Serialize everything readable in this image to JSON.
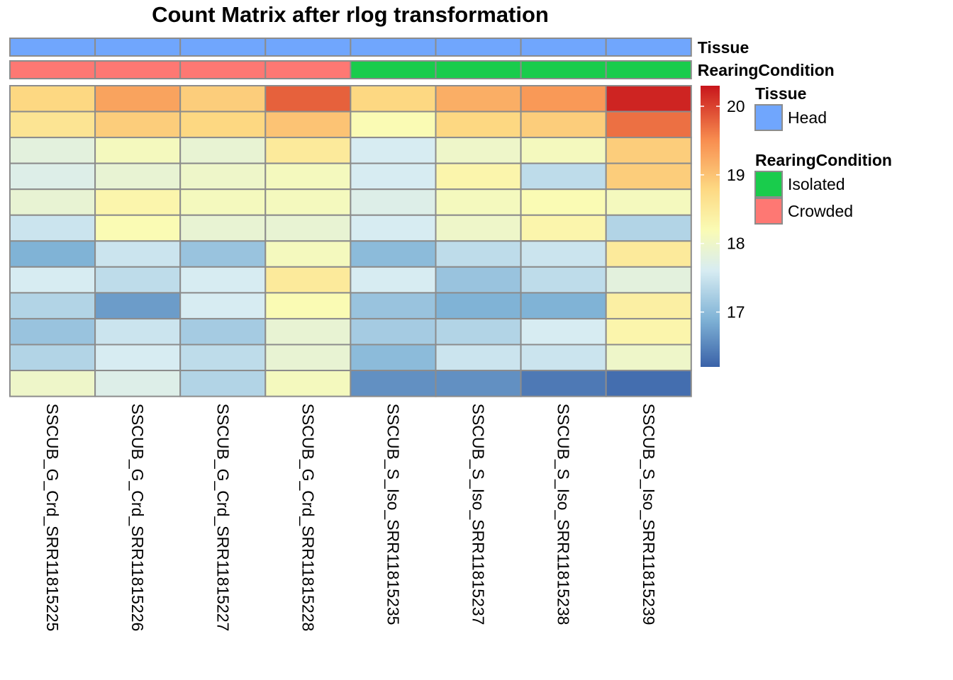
{
  "chart_data": {
    "type": "heatmap",
    "title": "Count Matrix after rlog transformation",
    "columns": [
      "SSCUB_G_Crd_SRR11815225",
      "SSCUB_G_Crd_SRR11815226",
      "SSCUB_G_Crd_SRR11815227",
      "SSCUB_G_Crd_SRR11815228",
      "SSCUB_S_Iso_SRR11815235",
      "SSCUB_S_Iso_SRR11815237",
      "SSCUB_S_Iso_SRR11815238",
      "SSCUB_S_Iso_SRR11815239"
    ],
    "values": [
      [
        18.8,
        19.3,
        18.9,
        19.8,
        18.8,
        19.2,
        19.4,
        20.2
      ],
      [
        18.6,
        18.9,
        18.8,
        19.0,
        18.2,
        18.8,
        18.9,
        19.7
      ],
      [
        17.8,
        18.1,
        17.9,
        18.5,
        17.6,
        18.0,
        18.1,
        18.9
      ],
      [
        17.7,
        17.9,
        18.0,
        18.1,
        17.6,
        18.3,
        17.4,
        18.9
      ],
      [
        17.9,
        18.3,
        18.1,
        18.1,
        17.7,
        18.1,
        18.2,
        18.1
      ],
      [
        17.5,
        18.2,
        17.9,
        17.9,
        17.6,
        18.0,
        18.3,
        17.3
      ],
      [
        16.9,
        17.5,
        17.1,
        18.1,
        17.0,
        17.4,
        17.5,
        18.5
      ],
      [
        17.6,
        17.4,
        17.6,
        18.5,
        17.6,
        17.1,
        17.4,
        17.8
      ],
      [
        17.3,
        16.7,
        17.6,
        18.2,
        17.1,
        16.9,
        16.9,
        18.4
      ],
      [
        17.1,
        17.5,
        17.2,
        17.9,
        17.2,
        17.3,
        17.6,
        18.3
      ],
      [
        17.3,
        17.6,
        17.4,
        17.9,
        17.0,
        17.5,
        17.5,
        18.0
      ],
      [
        18.0,
        17.7,
        17.3,
        18.1,
        16.6,
        16.6,
        16.4,
        16.3
      ]
    ],
    "color_scale": {
      "min": 16.2,
      "max": 20.3,
      "ticks": [
        17,
        18,
        19,
        20
      ],
      "stops": [
        {
          "value": 16.2,
          "color": "#3a62a8"
        },
        {
          "value": 16.9,
          "color": "#80b3d6"
        },
        {
          "value": 17.6,
          "color": "#d7ecf2"
        },
        {
          "value": 18.2,
          "color": "#fafbb4"
        },
        {
          "value": 18.8,
          "color": "#fdd882"
        },
        {
          "value": 19.5,
          "color": "#f88e50"
        },
        {
          "value": 20.3,
          "color": "#c8151b"
        }
      ]
    },
    "annotations": [
      {
        "name": "Tissue",
        "values": [
          "Head",
          "Head",
          "Head",
          "Head",
          "Head",
          "Head",
          "Head",
          "Head"
        ],
        "levels": [
          {
            "label": "Head",
            "color": "#70a6fd"
          }
        ]
      },
      {
        "name": "RearingCondition",
        "values": [
          "Crowded",
          "Crowded",
          "Crowded",
          "Crowded",
          "Isolated",
          "Isolated",
          "Isolated",
          "Isolated"
        ],
        "levels": [
          {
            "label": "Isolated",
            "color": "#19cc4c"
          },
          {
            "label": "Crowded",
            "color": "#fe7873"
          }
        ]
      }
    ],
    "grid": true,
    "legend_position": "right"
  }
}
